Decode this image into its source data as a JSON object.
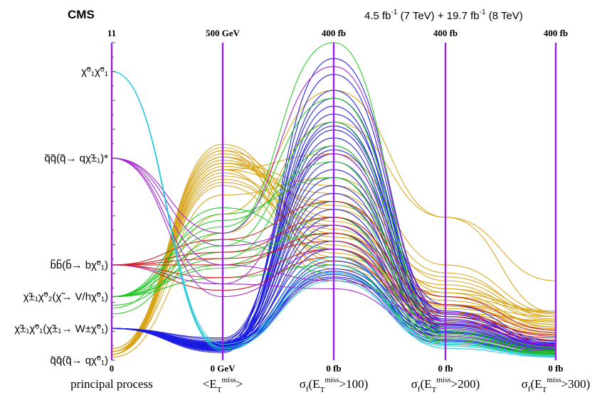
{
  "header": {
    "experiment": "CMS",
    "luminosity_a": "4.5 fb",
    "luminosity_a_sup": "-1",
    "luminosity_a_tail": " (7 TeV) + 19.7 fb",
    "luminosity_b_sup": "-1",
    "luminosity_b_tail": " (8 TeV)"
  },
  "colors": {
    "axis": "#9a1fe0",
    "axis_tick": "#555555",
    "process_orange": "#d8a419",
    "process_blue": "#1a1ae0",
    "process_green": "#22c822",
    "process_red": "#cc1a1a",
    "process_cyan": "#20c8d8",
    "process_purple": "#a020d0"
  },
  "chart_data": {
    "type": "parallel-coordinates",
    "axes": [
      {
        "name": "principal process",
        "top_label": "11",
        "bottom_label": "0",
        "range": [
          0,
          11
        ]
      },
      {
        "name": "<E_T^miss>",
        "top_label": "500 GeV",
        "bottom_label": "0 GeV",
        "range": [
          0,
          500
        ],
        "unit": "GeV"
      },
      {
        "name": "σ_f(E_T^miss>100)",
        "top_label": "400 fb",
        "bottom_label": "0 fb",
        "range": [
          0,
          400
        ],
        "unit": "fb"
      },
      {
        "name": "σ_f(E_T^miss>200)",
        "top_label": "400 fb",
        "bottom_label": "0 fb",
        "range": [
          0,
          400
        ],
        "unit": "fb"
      },
      {
        "name": "σ_f(E_T^miss>300)",
        "top_label": "400 fb",
        "bottom_label": "0 fb",
        "range": [
          0,
          400
        ],
        "unit": "fb"
      }
    ],
    "process_labels": [
      {
        "value": 10,
        "text": "χ̃⁰₁χ̃⁰₁"
      },
      {
        "value": 7,
        "text": "q̃q̃(q̃→ qχ̃±₁)*"
      },
      {
        "value": 3.3,
        "text": "b̃b̃(b̃→ bχ̃⁰₁)"
      },
      {
        "value": 2.2,
        "text": "χ̃±₁χ̃⁰₂(χ̃→ V/hχ̃⁰₁)"
      },
      {
        "value": 1.1,
        "text": "χ̃±₁χ̃⁰₁(χ̃±₁→ W±χ̃⁰₁)"
      },
      {
        "value": 0,
        "text": "q̃q̃(q̃→ qχ̃⁰₁)"
      }
    ],
    "series": [
      {
        "group": "orange",
        "color": "#d8a419",
        "lines": [
          [
            0.3,
            320,
            160,
            80,
            60
          ],
          [
            0.2,
            300,
            200,
            90,
            60
          ],
          [
            0.3,
            330,
            180,
            70,
            55
          ],
          [
            0.2,
            280,
            150,
            60,
            50
          ],
          [
            0.4,
            310,
            220,
            100,
            55
          ],
          [
            0.3,
            290,
            170,
            80,
            45
          ],
          [
            0.2,
            340,
            140,
            60,
            40
          ],
          [
            0.3,
            300,
            260,
            120,
            60
          ],
          [
            0.2,
            320,
            190,
            90,
            50
          ],
          [
            0.3,
            310,
            175,
            75,
            45
          ],
          [
            0.2,
            295,
            135,
            65,
            48
          ],
          [
            0.4,
            325,
            155,
            95,
            52
          ],
          [
            0.3,
            305,
            210,
            85,
            42
          ],
          [
            0.2,
            315,
            165,
            70,
            38
          ],
          [
            0.3,
            285,
            145,
            58,
            35
          ],
          [
            0.2,
            335,
            125,
            55,
            33
          ],
          [
            0.1,
            200,
            300,
            180,
            100
          ],
          [
            0.3,
            230,
            340,
            180,
            60
          ],
          [
            0.2,
            260,
            230,
            110,
            55
          ],
          [
            0.3,
            275,
            120,
            70,
            48
          ],
          [
            0.2,
            330,
            100,
            60,
            40
          ],
          [
            0.3,
            320,
            130,
            85,
            62
          ],
          [
            0.2,
            300,
            115,
            68,
            42
          ],
          [
            0.4,
            310,
            195,
            105,
            58
          ]
        ]
      },
      {
        "group": "blue",
        "color": "#1a1ae0",
        "lines": [
          [
            1.1,
            20,
            380,
            60,
            20
          ],
          [
            1.1,
            25,
            360,
            50,
            18
          ],
          [
            1.1,
            30,
            340,
            45,
            15
          ],
          [
            1.1,
            15,
            320,
            40,
            12
          ],
          [
            1.1,
            20,
            300,
            55,
            22
          ],
          [
            1.1,
            18,
            290,
            48,
            20
          ],
          [
            1.1,
            22,
            280,
            42,
            16
          ],
          [
            1.1,
            28,
            270,
            38,
            14
          ],
          [
            1.1,
            24,
            260,
            52,
            19
          ],
          [
            1.1,
            16,
            250,
            44,
            17
          ],
          [
            1.1,
            21,
            240,
            36,
            13
          ],
          [
            1.1,
            26,
            230,
            46,
            21
          ],
          [
            1.1,
            19,
            220,
            40,
            15
          ],
          [
            1.1,
            23,
            210,
            34,
            12
          ],
          [
            1.1,
            17,
            200,
            50,
            18
          ],
          [
            1.1,
            27,
            190,
            42,
            16
          ],
          [
            1.1,
            20,
            180,
            38,
            14
          ],
          [
            1.1,
            25,
            170,
            32,
            11
          ],
          [
            1.1,
            18,
            160,
            44,
            19
          ],
          [
            1.1,
            22,
            150,
            36,
            13
          ],
          [
            1.1,
            30,
            140,
            30,
            10
          ],
          [
            1.1,
            24,
            130,
            28,
            12
          ],
          [
            1.1,
            16,
            125,
            40,
            15
          ],
          [
            1.1,
            21,
            120,
            26,
            9
          ],
          [
            1.1,
            26,
            115,
            34,
            14
          ],
          [
            1.1,
            19,
            112,
            24,
            8
          ],
          [
            1.1,
            23,
            110,
            30,
            11
          ],
          [
            1.1,
            17,
            108,
            22,
            10
          ],
          [
            1.1,
            28,
            105,
            36,
            13
          ],
          [
            1.1,
            20,
            103,
            20,
            7
          ],
          [
            1.1,
            35,
            330,
            60,
            22
          ],
          [
            1.1,
            12,
            310,
            70,
            25
          ],
          [
            1.1,
            33,
            295,
            58,
            20
          ],
          [
            1.1,
            14,
            265,
            62,
            24
          ]
        ]
      },
      {
        "group": "green",
        "color": "#22c822",
        "lines": [
          [
            2.2,
            200,
            400,
            30,
            10
          ],
          [
            2.2,
            180,
            300,
            40,
            15
          ],
          [
            2.2,
            220,
            250,
            20,
            8
          ],
          [
            2.2,
            150,
            200,
            35,
            12
          ],
          [
            1.9,
            170,
            160,
            30,
            10
          ],
          [
            2.2,
            240,
            140,
            25,
            9
          ],
          [
            2.2,
            130,
            120,
            20,
            7
          ],
          [
            1.6,
            190,
            110,
            28,
            11
          ],
          [
            2.2,
            210,
            330,
            45,
            16
          ],
          [
            2.2,
            160,
            270,
            38,
            13
          ],
          [
            1.8,
            230,
            230,
            32,
            12
          ],
          [
            2.2,
            145,
            180,
            22,
            8
          ]
        ]
      },
      {
        "group": "red",
        "color": "#cc1a1a",
        "lines": [
          [
            3.3,
            150,
            160,
            60,
            30
          ],
          [
            3.3,
            170,
            180,
            70,
            35
          ],
          [
            3.3,
            130,
            140,
            50,
            28
          ],
          [
            3.3,
            190,
            200,
            80,
            38
          ],
          [
            3.3,
            110,
            130,
            45,
            25
          ],
          [
            3.3,
            160,
            150,
            55,
            32
          ]
        ]
      },
      {
        "group": "purple",
        "color": "#a020d0",
        "lines": [
          [
            7,
            200,
            370,
            60,
            20
          ],
          [
            7,
            150,
            100,
            50,
            20
          ],
          [
            7,
            100,
            140,
            40,
            15
          ],
          [
            7,
            120,
            90,
            30,
            12
          ],
          [
            7,
            180,
            170,
            45,
            18
          ],
          [
            3.3,
            120,
            260,
            50,
            20
          ]
        ]
      },
      {
        "group": "cyan",
        "color": "#20c8d8",
        "lines": [
          [
            10,
            20,
            130,
            20,
            5
          ],
          [
            10,
            15,
            120,
            15,
            4
          ],
          [
            10,
            25,
            110,
            22,
            6
          ],
          [
            10,
            18,
            100,
            18,
            5
          ]
        ]
      }
    ],
    "grid": false,
    "legend": "none"
  }
}
